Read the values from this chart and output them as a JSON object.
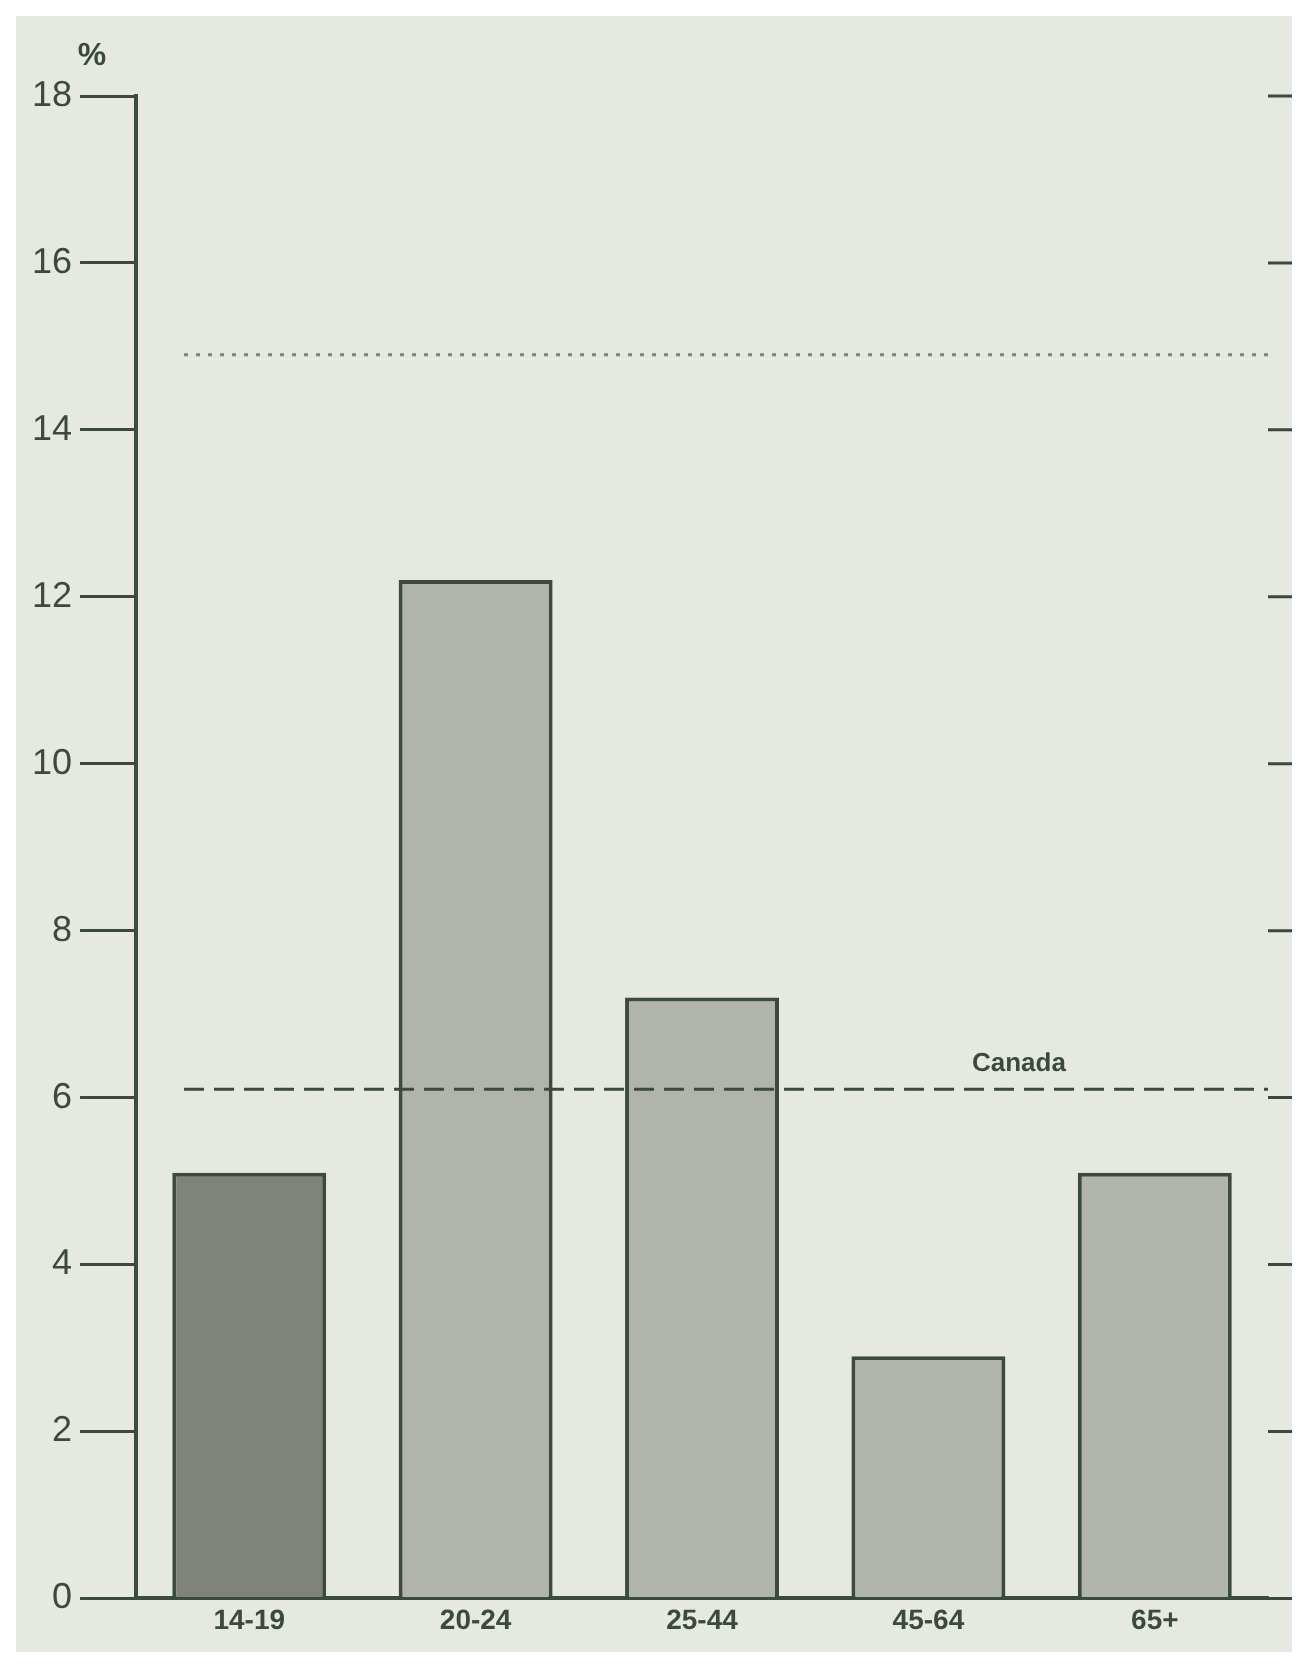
{
  "chart_data": {
    "type": "bar",
    "ylabel": "%",
    "categories": [
      "14-19",
      "20-24",
      "25-44",
      "45-64",
      "65+"
    ],
    "values": [
      5.1,
      12.2,
      7.2,
      2.9,
      5.1
    ],
    "colors": [
      "#7e847c",
      "#b0b4ac",
      "#b0b4ac",
      "#b0b4ac",
      "#b0b4ac"
    ],
    "ylim": [
      0,
      18
    ],
    "yticks": [
      0,
      2,
      4,
      6,
      8,
      10,
      12,
      14,
      16,
      18
    ],
    "ref_lines": [
      {
        "axis": "y",
        "value": 6.1,
        "label": "Canada",
        "line_style": "dashed",
        "color": "#3c4a3c"
      },
      {
        "axis": "y",
        "value": 14.9,
        "label": null,
        "line_style": "dotted",
        "color": "#7a847a"
      }
    ],
    "grid": false,
    "legend": false
  }
}
